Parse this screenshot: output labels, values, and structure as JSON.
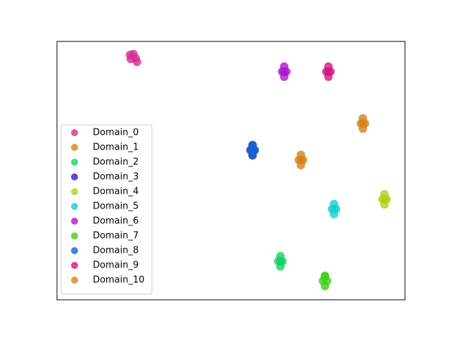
{
  "chart_data": {
    "type": "scatter",
    "xlim": [
      0,
      100
    ],
    "ylim": [
      0,
      100
    ],
    "legend": "lower left",
    "series": [
      {
        "name": "Domain_0",
        "color": "#d62d8f",
        "x": [
          21.0,
          22.0,
          21.2,
          22.6,
          23.0
        ],
        "y": [
          94.8,
          95.1,
          93.2,
          93.5,
          92.1
        ]
      },
      {
        "name": "Domain_1",
        "color": "#d6821a",
        "x": [
          87.9,
          87.9,
          87.3,
          88.5,
          87.9
        ],
        "y": [
          70.2,
          66.2,
          68.2,
          68.2,
          68.2
        ]
      },
      {
        "name": "Domain_2",
        "color": "#17cf62",
        "x": [
          64.2,
          64.2,
          63.6,
          64.8,
          64.2
        ],
        "y": [
          16.9,
          12.9,
          14.9,
          14.9,
          14.9
        ]
      },
      {
        "name": "Domain_3",
        "color": "#3d17cf",
        "x": [
          56.2,
          56.2,
          55.6,
          56.8,
          56.2
        ],
        "y": [
          59.9,
          55.9,
          57.9,
          57.9,
          57.9
        ]
      },
      {
        "name": "Domain_4",
        "color": "#b0cf17",
        "x": [
          94.1,
          94.1,
          93.5,
          94.7,
          94.1
        ],
        "y": [
          40.9,
          36.9,
          38.9,
          38.9,
          38.9
        ]
      },
      {
        "name": "Domain_5",
        "color": "#17cfcf",
        "x": [
          79.6,
          79.6,
          79.0,
          80.2,
          79.6
        ],
        "y": [
          37.1,
          33.1,
          35.1,
          35.1,
          35.1
        ]
      },
      {
        "name": "Domain_6",
        "color": "#aa17cf",
        "x": [
          65.3,
          65.3,
          64.7,
          65.9,
          65.3
        ],
        "y": [
          90.3,
          86.3,
          88.3,
          88.3,
          88.3
        ]
      },
      {
        "name": "Domain_7",
        "color": "#3dcf17",
        "x": [
          77.0,
          77.0,
          76.4,
          77.6,
          77.0
        ],
        "y": [
          9.3,
          5.3,
          7.3,
          7.3,
          9.0
        ]
      },
      {
        "name": "Domain_8",
        "color": "#1762cf",
        "x": [
          56.2,
          56.2,
          55.6,
          56.8,
          56.2
        ],
        "y": [
          59.9,
          55.9,
          57.9,
          57.9,
          57.9
        ]
      },
      {
        "name": "Domain_9",
        "color": "#cf1782",
        "x": [
          78.0,
          78.0,
          77.4,
          78.6,
          78.0
        ],
        "y": [
          90.3,
          86.3,
          88.3,
          88.3,
          88.3
        ]
      },
      {
        "name": "Domain_10",
        "color": "#d6821a",
        "x": [
          70.1,
          70.1,
          69.5,
          70.7,
          70.1
        ],
        "y": [
          56.1,
          52.1,
          54.1,
          54.1,
          54.1
        ]
      }
    ]
  }
}
